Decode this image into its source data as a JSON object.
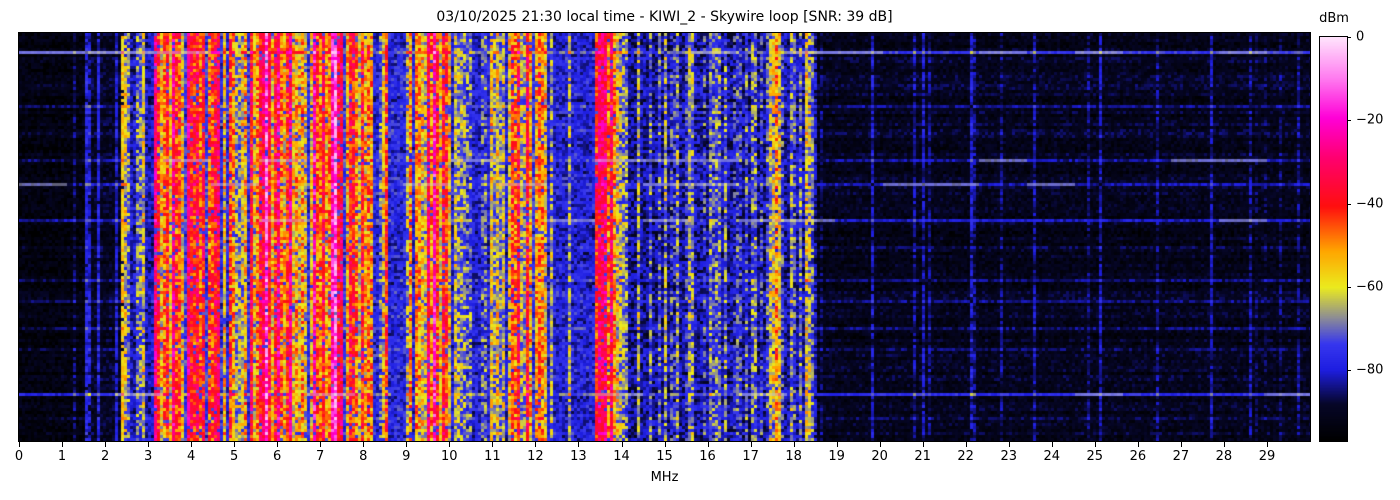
{
  "title": "03/10/2025 21:30 local time - KIWI_2 - Skywire loop [SNR: 39 dB]",
  "xlabel": "MHz",
  "x_ticks": [
    "0",
    "1",
    "2",
    "3",
    "4",
    "5",
    "6",
    "7",
    "8",
    "9",
    "10",
    "11",
    "12",
    "13",
    "14",
    "15",
    "16",
    "17",
    "18",
    "19",
    "20",
    "21",
    "22",
    "23",
    "24",
    "25",
    "26",
    "27",
    "28",
    "29"
  ],
  "colorbar": {
    "label": "dBm",
    "ticks": [
      {
        "value": 0,
        "label": "0"
      },
      {
        "value": -20,
        "label": "−20"
      },
      {
        "value": -40,
        "label": "−40"
      },
      {
        "value": -60,
        "label": "−60"
      },
      {
        "value": -80,
        "label": "−80"
      }
    ],
    "z_min": -97,
    "z_max": 0
  },
  "chart_data": {
    "type": "heatmap",
    "title": "03/10/2025 21:30 local time - KIWI_2 - Skywire loop [SNR: 39 dB]",
    "xlabel": "MHz",
    "x_range": [
      0,
      30
    ],
    "z_label": "dBm",
    "z_range": [
      -97,
      0
    ],
    "description": "HF waterfall spectrogram: quiet below 1.5 MHz, dense broadcast/amateur activity (blue/yellow/orange/red vertical carriers) from ~2.5 to 18.5 MHz with hottest bands near 3.2-4.7, 5.4-6.4, 7.0-7.5, 9.3-10, 11.5-12.2 and 13.4-13.9 MHz, near-empty dark noise from 18.5-30 MHz, plus faint horizontal broadband-noise time rows",
    "noise_seed": 42,
    "colormap_stops": [
      [
        0.0,
        0,
        0,
        0
      ],
      [
        0.09,
        6,
        6,
        40
      ],
      [
        0.175,
        30,
        30,
        225
      ],
      [
        0.24,
        55,
        55,
        238
      ],
      [
        0.3,
        135,
        135,
        155
      ],
      [
        0.38,
        235,
        235,
        30
      ],
      [
        0.47,
        255,
        165,
        0
      ],
      [
        0.58,
        255,
        15,
        15
      ],
      [
        0.7,
        255,
        0,
        110
      ],
      [
        0.8,
        255,
        0,
        215
      ],
      [
        0.9,
        255,
        125,
        240
      ],
      [
        1.0,
        255,
        228,
        252
      ]
    ],
    "bands": [
      {
        "f0": 0.0,
        "f1": 1.55,
        "bg": 0.035,
        "p": 0.03,
        "smin": 0.04,
        "smax": 0.1
      },
      {
        "f0": 1.55,
        "f1": 2.45,
        "bg": 0.07,
        "p": 0.3,
        "smin": 0.09,
        "smax": 0.2
      },
      {
        "f0": 2.45,
        "f1": 3.15,
        "bg": 0.16,
        "p": 0.6,
        "smin": 0.06,
        "smax": 0.28
      },
      {
        "f0": 3.15,
        "f1": 4.65,
        "bg": 0.22,
        "p": 0.92,
        "smin": 0.15,
        "smax": 0.5
      },
      {
        "f0": 4.65,
        "f1": 5.35,
        "bg": 0.2,
        "p": 0.72,
        "smin": 0.08,
        "smax": 0.36
      },
      {
        "f0": 5.35,
        "f1": 6.45,
        "bg": 0.22,
        "p": 0.9,
        "smin": 0.13,
        "smax": 0.48
      },
      {
        "f0": 6.45,
        "f1": 6.95,
        "bg": 0.2,
        "p": 0.75,
        "smin": 0.07,
        "smax": 0.36
      },
      {
        "f0": 6.95,
        "f1": 7.55,
        "bg": 0.23,
        "p": 0.93,
        "smin": 0.16,
        "smax": 0.52
      },
      {
        "f0": 7.55,
        "f1": 8.1,
        "bg": 0.22,
        "p": 0.85,
        "smin": 0.09,
        "smax": 0.42
      },
      {
        "f0": 8.1,
        "f1": 9.3,
        "bg": 0.19,
        "p": 0.62,
        "smin": 0.05,
        "smax": 0.32
      },
      {
        "f0": 9.3,
        "f1": 10.05,
        "bg": 0.22,
        "p": 0.9,
        "smin": 0.12,
        "smax": 0.5
      },
      {
        "f0": 10.05,
        "f1": 11.45,
        "bg": 0.18,
        "p": 0.52,
        "smin": 0.04,
        "smax": 0.24
      },
      {
        "f0": 11.45,
        "f1": 12.2,
        "bg": 0.21,
        "p": 0.85,
        "smin": 0.1,
        "smax": 0.45
      },
      {
        "f0": 12.2,
        "f1": 13.4,
        "bg": 0.18,
        "p": 0.52,
        "smin": 0.04,
        "smax": 0.24
      },
      {
        "f0": 13.4,
        "f1": 13.95,
        "bg": 0.22,
        "p": 0.9,
        "smin": 0.12,
        "smax": 0.5
      },
      {
        "f0": 13.95,
        "f1": 15.45,
        "bg": 0.14,
        "p": 0.45,
        "smin": 0.04,
        "smax": 0.2
      },
      {
        "f0": 15.45,
        "f1": 16.4,
        "bg": 0.15,
        "p": 0.52,
        "smin": 0.04,
        "smax": 0.22
      },
      {
        "f0": 16.4,
        "f1": 17.35,
        "bg": 0.14,
        "p": 0.45,
        "smin": 0.04,
        "smax": 0.18
      },
      {
        "f0": 17.35,
        "f1": 18.55,
        "bg": 0.15,
        "p": 0.55,
        "smin": 0.05,
        "smax": 0.25
      },
      {
        "f0": 18.55,
        "f1": 30.0,
        "bg": 0.06,
        "p": 0.05,
        "smin": 0.02,
        "smax": 0.08
      }
    ],
    "carriers": [
      {
        "f": 2.4,
        "level": 0.42
      },
      {
        "f": 3.22,
        "level": 0.58
      },
      {
        "f": 3.6,
        "level": 0.55
      },
      {
        "f": 4.0,
        "level": 0.6
      },
      {
        "f": 4.47,
        "level": 0.55
      },
      {
        "f": 5.0,
        "level": 0.32
      },
      {
        "f": 5.75,
        "level": 0.85
      },
      {
        "f": 6.0,
        "level": 0.72
      },
      {
        "f": 6.18,
        "level": 0.58
      },
      {
        "f": 6.8,
        "level": 0.75
      },
      {
        "f": 7.05,
        "level": 0.62
      },
      {
        "f": 7.25,
        "level": 0.78
      },
      {
        "f": 7.35,
        "level": 0.88
      },
      {
        "f": 7.8,
        "level": 0.5
      },
      {
        "f": 8.5,
        "level": 0.55
      },
      {
        "f": 9.45,
        "level": 0.68
      },
      {
        "f": 9.6,
        "level": 0.78
      },
      {
        "f": 9.8,
        "level": 0.6
      },
      {
        "f": 10.0,
        "level": 0.4
      },
      {
        "f": 11.6,
        "level": 0.6
      },
      {
        "f": 11.8,
        "level": 0.62
      },
      {
        "f": 12.05,
        "level": 0.52
      },
      {
        "f": 13.57,
        "level": 0.68
      },
      {
        "f": 13.72,
        "level": 0.66
      },
      {
        "f": 14.0,
        "level": 0.3
      },
      {
        "f": 15.0,
        "level": 0.33
      },
      {
        "f": 15.6,
        "level": 0.3
      },
      {
        "f": 16.2,
        "level": 0.27
      },
      {
        "f": 16.85,
        "level": 0.25
      },
      {
        "f": 17.55,
        "level": 0.48
      },
      {
        "f": 17.9,
        "level": 0.3
      },
      {
        "f": 18.15,
        "level": 0.28
      },
      {
        "f": 18.4,
        "level": 0.26
      },
      {
        "f": 19.8,
        "level": 0.16
      },
      {
        "f": 21.0,
        "level": 0.15
      },
      {
        "f": 22.1,
        "level": 0.16
      },
      {
        "f": 25.1,
        "level": 0.15
      },
      {
        "f": 27.7,
        "level": 0.14
      },
      {
        "f": 28.6,
        "level": 0.13
      }
    ],
    "time_rows": [
      {
        "frac": 0.047,
        "boost": 0.16
      },
      {
        "frac": 0.125,
        "boost": 0.04
      },
      {
        "frac": 0.175,
        "boost": 0.05
      },
      {
        "frac": 0.245,
        "boost": 0.05
      },
      {
        "frac": 0.306,
        "boost": 0.09
      },
      {
        "frac": 0.365,
        "boost": 0.09
      },
      {
        "frac": 0.453,
        "boost": 0.13
      },
      {
        "frac": 0.52,
        "boost": 0.04
      },
      {
        "frac": 0.6,
        "boost": 0.05
      },
      {
        "frac": 0.655,
        "boost": 0.07
      },
      {
        "frac": 0.72,
        "boost": 0.04
      },
      {
        "frac": 0.77,
        "boost": 0.05
      },
      {
        "frac": 0.835,
        "boost": 0.04
      },
      {
        "frac": 0.882,
        "boost": 0.16
      },
      {
        "frac": 0.94,
        "boost": 0.04
      }
    ]
  }
}
